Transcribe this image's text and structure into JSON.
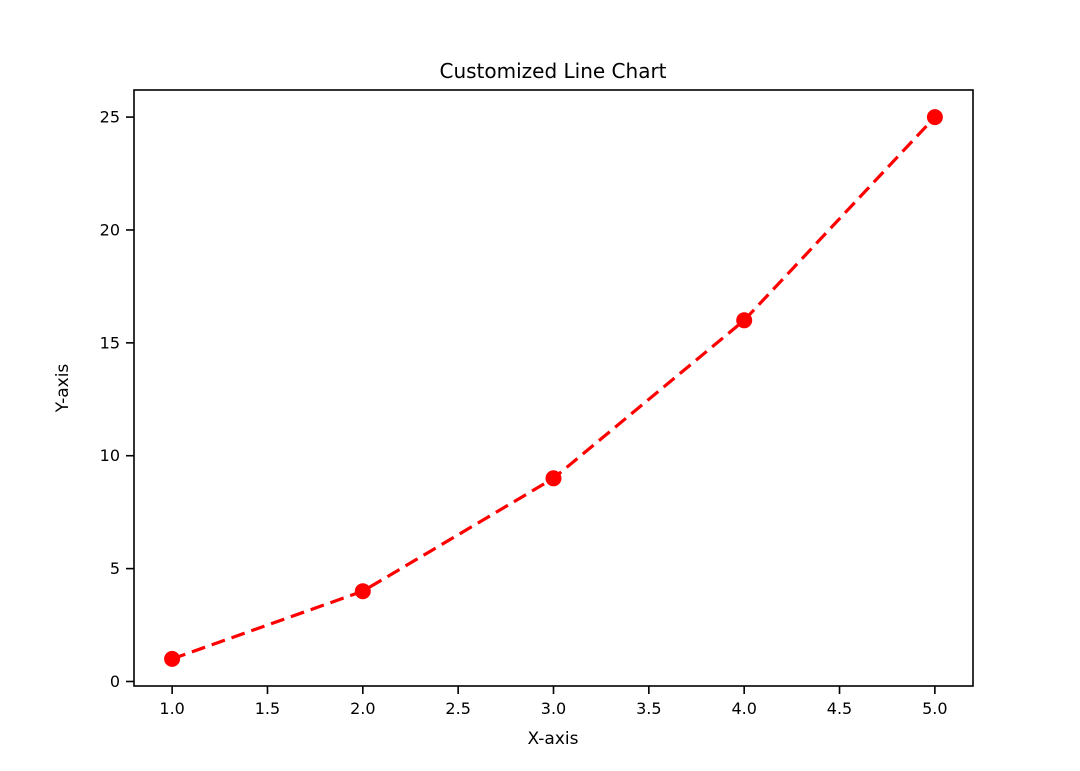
{
  "figure": {
    "background_color": "#ffffff",
    "axis_color": "#000000",
    "text_color": "#000000",
    "line_color": "#ff0000",
    "marker_color": "#ff0000"
  },
  "chart_data": {
    "type": "line",
    "title": "Customized Line Chart",
    "xlabel": "X-axis",
    "ylabel": "Y-axis",
    "x": [
      1,
      2,
      3,
      4,
      5
    ],
    "y": [
      1,
      4,
      9,
      16,
      25
    ],
    "series": [
      {
        "name": "values",
        "x": [
          1,
          2,
          3,
          4,
          5
        ],
        "values": [
          1,
          4,
          9,
          16,
          25
        ]
      }
    ],
    "xlim": [
      0.8,
      5.2
    ],
    "ylim": [
      -0.2,
      26.2
    ],
    "xticks": [
      1.0,
      1.5,
      2.0,
      2.5,
      3.0,
      3.5,
      4.0,
      4.5,
      5.0
    ],
    "xtick_labels": [
      "1.0",
      "1.5",
      "2.0",
      "2.5",
      "3.0",
      "3.5",
      "4.0",
      "4.5",
      "5.0"
    ],
    "yticks": [
      0,
      5,
      10,
      15,
      20,
      25
    ],
    "ytick_labels": [
      "0",
      "5",
      "10",
      "15",
      "20",
      "25"
    ],
    "line_style": "dashed",
    "marker": "circle",
    "grid": false,
    "legend_position": "none"
  }
}
